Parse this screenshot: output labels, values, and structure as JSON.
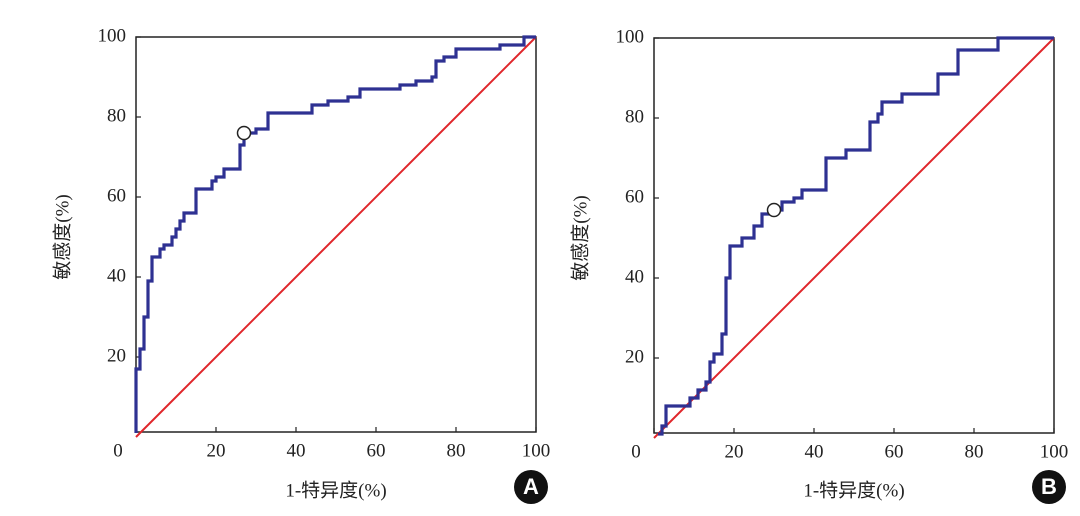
{
  "chart_data": [
    {
      "type": "line",
      "panel": "A",
      "xlabel": "1-特异度(%)",
      "ylabel": "敏感度(%)",
      "xlim": [
        0,
        100
      ],
      "ylim": [
        0,
        100
      ],
      "xticks": [
        0,
        20,
        40,
        60,
        80,
        100
      ],
      "yticks": [
        20,
        40,
        60,
        80,
        100
      ],
      "color": "#2e3192",
      "reference_color": "#e0262b",
      "x": [
        0,
        0,
        1,
        1,
        2,
        2,
        3,
        3,
        4,
        4,
        6,
        6,
        7,
        7,
        9,
        9,
        10,
        10,
        11,
        11,
        12,
        12,
        15,
        15,
        19,
        19,
        20,
        20,
        22,
        22,
        26,
        26,
        27,
        27,
        30,
        30,
        33,
        33,
        44,
        44,
        48,
        48,
        53,
        53,
        56,
        56,
        66,
        66,
        70,
        70,
        74,
        74,
        75,
        75,
        77,
        77,
        80,
        80,
        91,
        91,
        97,
        97,
        100
      ],
      "values": [
        1,
        17,
        17,
        22,
        22,
        30,
        30,
        39,
        39,
        45,
        45,
        47,
        47,
        48,
        48,
        50,
        50,
        52,
        52,
        54,
        54,
        56,
        56,
        62,
        62,
        64,
        64,
        65,
        65,
        67,
        67,
        73,
        73,
        76,
        76,
        77,
        77,
        81,
        81,
        83,
        83,
        84,
        84,
        85,
        85,
        87,
        87,
        88,
        88,
        89,
        89,
        90,
        90,
        94,
        94,
        95,
        95,
        97,
        97,
        98,
        98,
        100,
        100
      ],
      "reference": {
        "x": [
          0,
          100
        ],
        "values": [
          0,
          100
        ]
      },
      "marker": {
        "x": 27,
        "y": 76
      }
    },
    {
      "type": "line",
      "panel": "B",
      "xlabel": "1-特异度(%)",
      "ylabel": "敏感度(%)",
      "xlim": [
        0,
        100
      ],
      "ylim": [
        0,
        100
      ],
      "xticks": [
        0,
        20,
        40,
        60,
        80,
        100
      ],
      "yticks": [
        20,
        40,
        60,
        80,
        100
      ],
      "color": "#2e3192",
      "reference_color": "#e0262b",
      "x": [
        1,
        2,
        2,
        3,
        3,
        9,
        9,
        11,
        11,
        13,
        13,
        14,
        14,
        15,
        15,
        17,
        17,
        18,
        18,
        19,
        19,
        22,
        22,
        25,
        25,
        27,
        27,
        30,
        30,
        32,
        32,
        35,
        35,
        37,
        37,
        43,
        43,
        48,
        48,
        54,
        54,
        56,
        56,
        57,
        57,
        62,
        62,
        71,
        71,
        76,
        76,
        86,
        86,
        100
      ],
      "values": [
        1,
        1,
        3,
        3,
        8,
        8,
        10,
        10,
        12,
        12,
        14,
        14,
        19,
        19,
        21,
        21,
        26,
        26,
        40,
        40,
        48,
        48,
        50,
        50,
        53,
        53,
        56,
        56,
        57,
        57,
        59,
        59,
        60,
        60,
        62,
        62,
        70,
        70,
        72,
        72,
        79,
        79,
        81,
        81,
        84,
        84,
        86,
        86,
        91,
        91,
        97,
        97,
        100,
        100
      ],
      "reference": {
        "x": [
          0,
          100
        ],
        "values": [
          0,
          100
        ]
      },
      "marker": {
        "x": 30,
        "y": 57
      }
    }
  ]
}
